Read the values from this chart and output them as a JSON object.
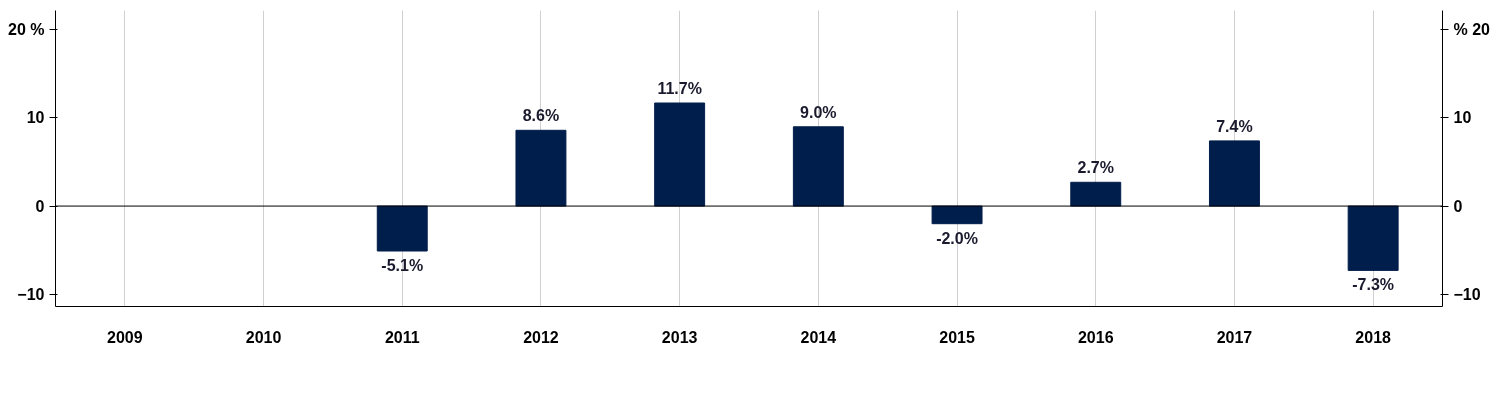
{
  "chart_data": {
    "type": "bar",
    "categories": [
      "2009",
      "2010",
      "2011",
      "2012",
      "2013",
      "2014",
      "2015",
      "2016",
      "2017",
      "2018"
    ],
    "series": [
      {
        "color": "#001e4b",
        "values": [
          null,
          null,
          -5.1,
          8.6,
          11.7,
          9.0,
          -2.0,
          2.7,
          7.4,
          -7.3
        ],
        "value_labels": [
          null,
          null,
          "-5.1%",
          "8.6%",
          "11.7%",
          "9.0%",
          "-2.0%",
          "2.7%",
          "7.4%",
          "-7.3%"
        ]
      }
    ],
    "ylim": [
      -11.4,
      22.2
    ],
    "yticks": [
      -10,
      0,
      10,
      {
        "value": 20,
        "label": "20 %"
      }
    ],
    "y2lim": [
      -11.4,
      22.2
    ],
    "y2ticks": [
      -10,
      0,
      10,
      {
        "value": 20,
        "label": "% 20"
      }
    ],
    "ref_lines": [
      {
        "axis": "y",
        "value": 0,
        "color": "#000000"
      }
    ],
    "grid": "x"
  }
}
